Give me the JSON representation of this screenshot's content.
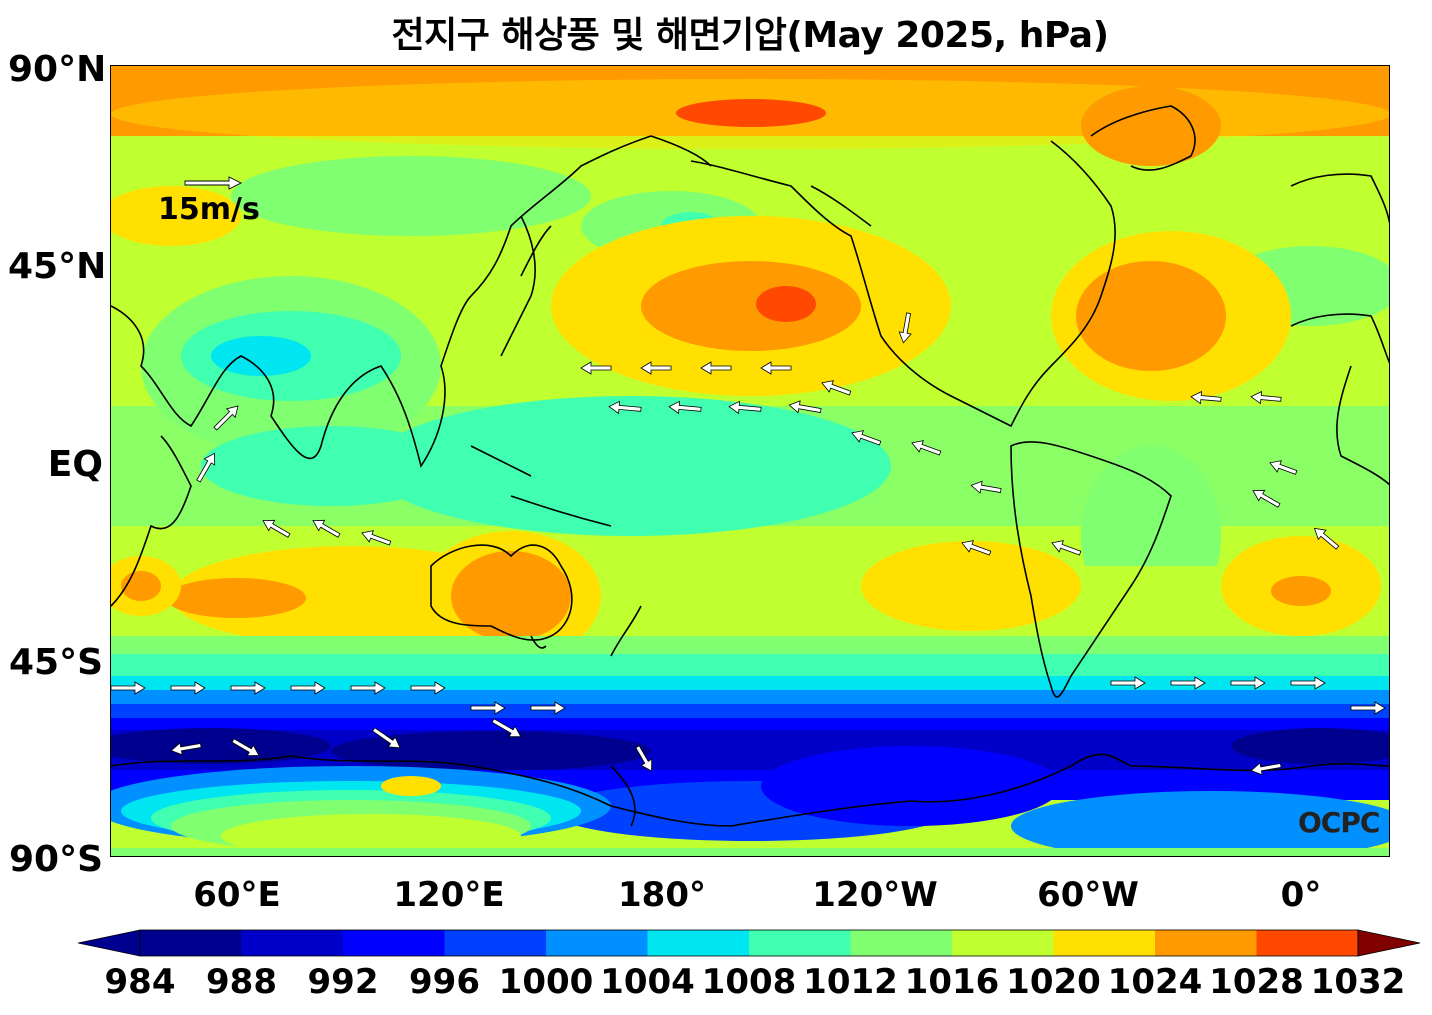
{
  "title": "전지구 해상풍 및 해면기압(May 2025, hPa)",
  "y_labels": [
    "90°N",
    "45°N",
    "EQ",
    "45°S",
    "90°S"
  ],
  "x_labels": [
    "60°E",
    "120°E",
    "180°",
    "120°W",
    "60°W",
    "0°"
  ],
  "reference_vector_label": "15m/s",
  "watermark": "OCPC",
  "colorbar": {
    "labels": [
      "984",
      "988",
      "992",
      "996",
      "1000",
      "1004",
      "1008",
      "1012",
      "1016",
      "1020",
      "1024",
      "1028",
      "1032"
    ],
    "colors": [
      "#00008f",
      "#0000c8",
      "#0000ff",
      "#0040ff",
      "#0090ff",
      "#00e6f0",
      "#40ffb0",
      "#80ff70",
      "#c0ff30",
      "#ffe000",
      "#ff9a00",
      "#ff4800",
      "#f00000",
      "#800000"
    ]
  },
  "map": {
    "longitude_span": "24°E to 24°E (centered 204°E)",
    "latitude_span": "90°S to 90°N"
  }
}
